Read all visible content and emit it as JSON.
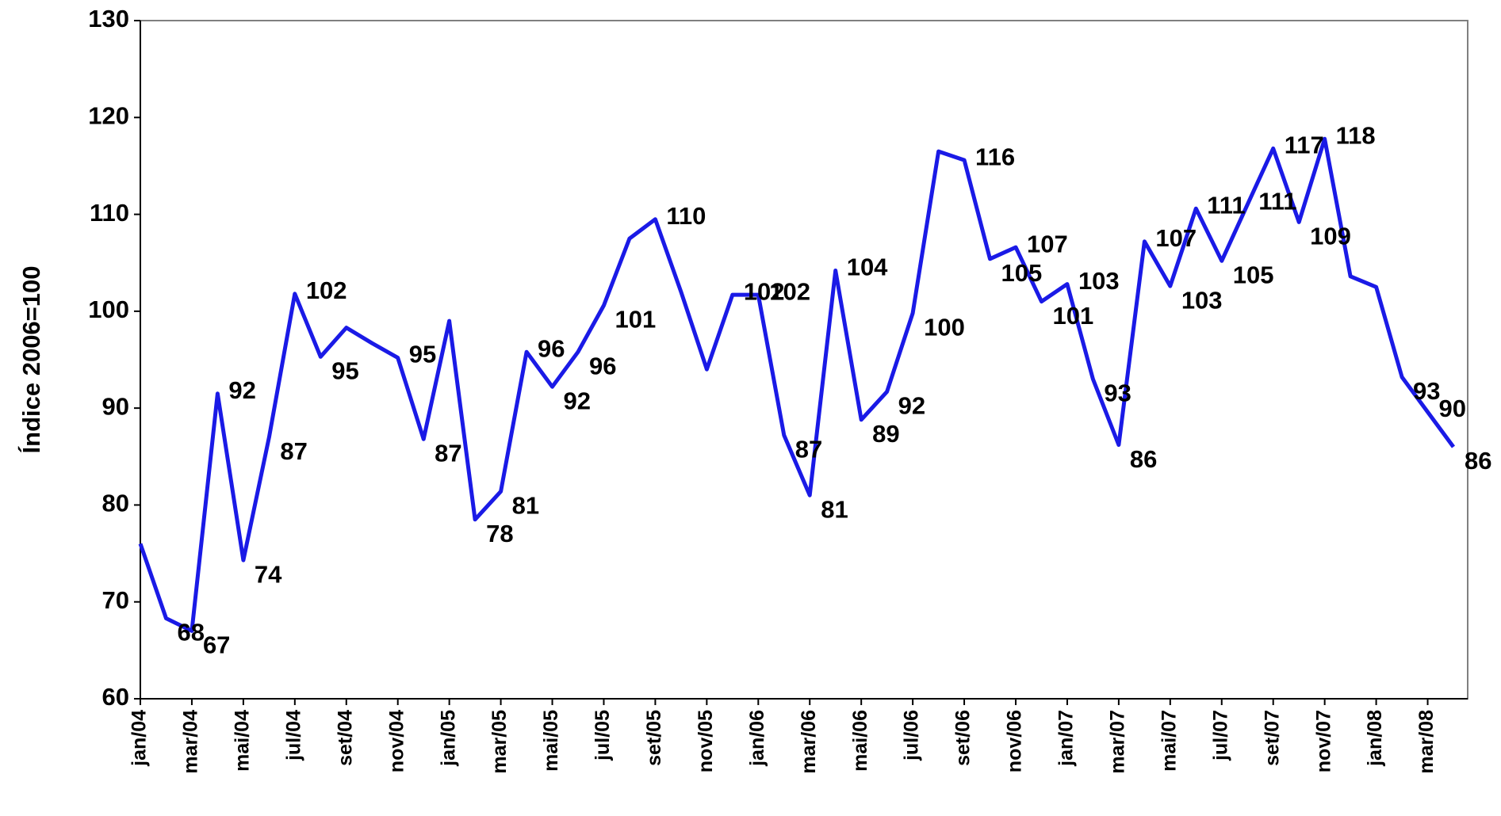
{
  "chart_data": {
    "type": "line",
    "y_label": "Índice 2006=100",
    "categories": [
      "jan/04",
      null,
      "mar/04",
      null,
      "mai/04",
      null,
      "jul/04",
      null,
      "set/04",
      null,
      "nov/04",
      null,
      "jan/05",
      null,
      "mar/05",
      null,
      "mai/05",
      null,
      "jul/05",
      null,
      "set/05",
      null,
      "nov/05",
      null,
      "jan/06",
      null,
      "mar/06",
      null,
      "mai/06",
      null,
      "jul/06",
      null,
      "set/06",
      null,
      "nov/06",
      null,
      "jan/07",
      null,
      "mar/07",
      null,
      "mai/07",
      null,
      "jul/07",
      null,
      "set/07",
      null,
      "nov/07",
      null,
      "jan/08",
      null,
      "mar/08",
      null
    ],
    "values": [
      76,
      68.3,
      67,
      91.5,
      74.3,
      87,
      101.8,
      95.3,
      98.3,
      96.7,
      95.2,
      86.8,
      99,
      78.5,
      81.4,
      95.8,
      92.2,
      95.8,
      100.6,
      107.5,
      109.5,
      102,
      94,
      101.7,
      101.7,
      87.2,
      81,
      104.2,
      88.8,
      91.7,
      99.8,
      116.5,
      115.6,
      105.4,
      106.6,
      101,
      102.8,
      93,
      86.2,
      107.2,
      102.6,
      110.6,
      105.2,
      111,
      116.8,
      109.2,
      117.8,
      103.6,
      102.5,
      93.2,
      89.6,
      86
    ],
    "value_labels": [
      null,
      "68",
      "67",
      "92",
      "74",
      "87",
      "102",
      "95",
      null,
      null,
      "95",
      "87",
      null,
      "78",
      "81",
      "96",
      "92",
      "96",
      "101",
      null,
      "110",
      null,
      null,
      "102",
      "102",
      "87",
      "81",
      "104",
      "89",
      "92",
      "100",
      null,
      "116",
      "105",
      "107",
      "101",
      "103",
      "93",
      "86",
      "107",
      "103",
      "111",
      "105",
      "111",
      "117",
      "109",
      "118",
      null,
      null,
      "93",
      "90",
      "86"
    ],
    "color": "#1a1ae6",
    "ylim": [
      60,
      130
    ],
    "yticks": [
      60,
      70,
      80,
      90,
      100,
      110,
      120,
      130
    ],
    "grid": false
  }
}
